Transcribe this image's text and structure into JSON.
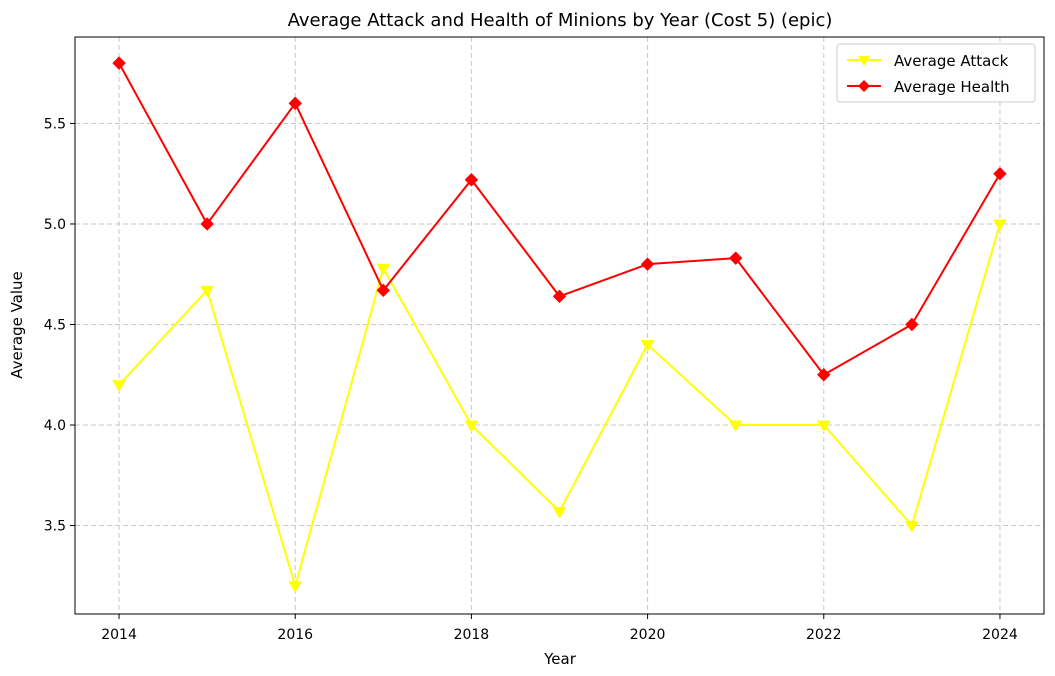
{
  "chart_data": {
    "type": "line",
    "title": "Average Attack and Health of Minions by Year (Cost 5) (epic)",
    "xlabel": "Year",
    "ylabel": "Average Value",
    "x": [
      2014,
      2015,
      2016,
      2017,
      2018,
      2019,
      2020,
      2021,
      2022,
      2023,
      2024
    ],
    "xlim": [
      2013.5,
      2024.5
    ],
    "ylim": [
      3.06,
      5.93
    ],
    "xticks": [
      "2014",
      "2016",
      "2018",
      "2020",
      "2022",
      "2024"
    ],
    "yticks": [
      "3.5",
      "4.0",
      "4.5",
      "5.0",
      "5.5"
    ],
    "grid": true,
    "legend_position": "top-right",
    "series": [
      {
        "name": "Average Attack",
        "color": "#ffff00",
        "marker": "triangle-down",
        "values": [
          4.2,
          4.67,
          3.2,
          4.78,
          4.0,
          3.57,
          4.4,
          4.0,
          4.0,
          3.5,
          5.0
        ]
      },
      {
        "name": "Average Health",
        "color": "#ff0000",
        "marker": "diamond",
        "values": [
          5.8,
          5.0,
          5.6,
          4.67,
          5.22,
          4.64,
          4.8,
          4.83,
          4.25,
          4.5,
          5.25
        ]
      }
    ]
  }
}
